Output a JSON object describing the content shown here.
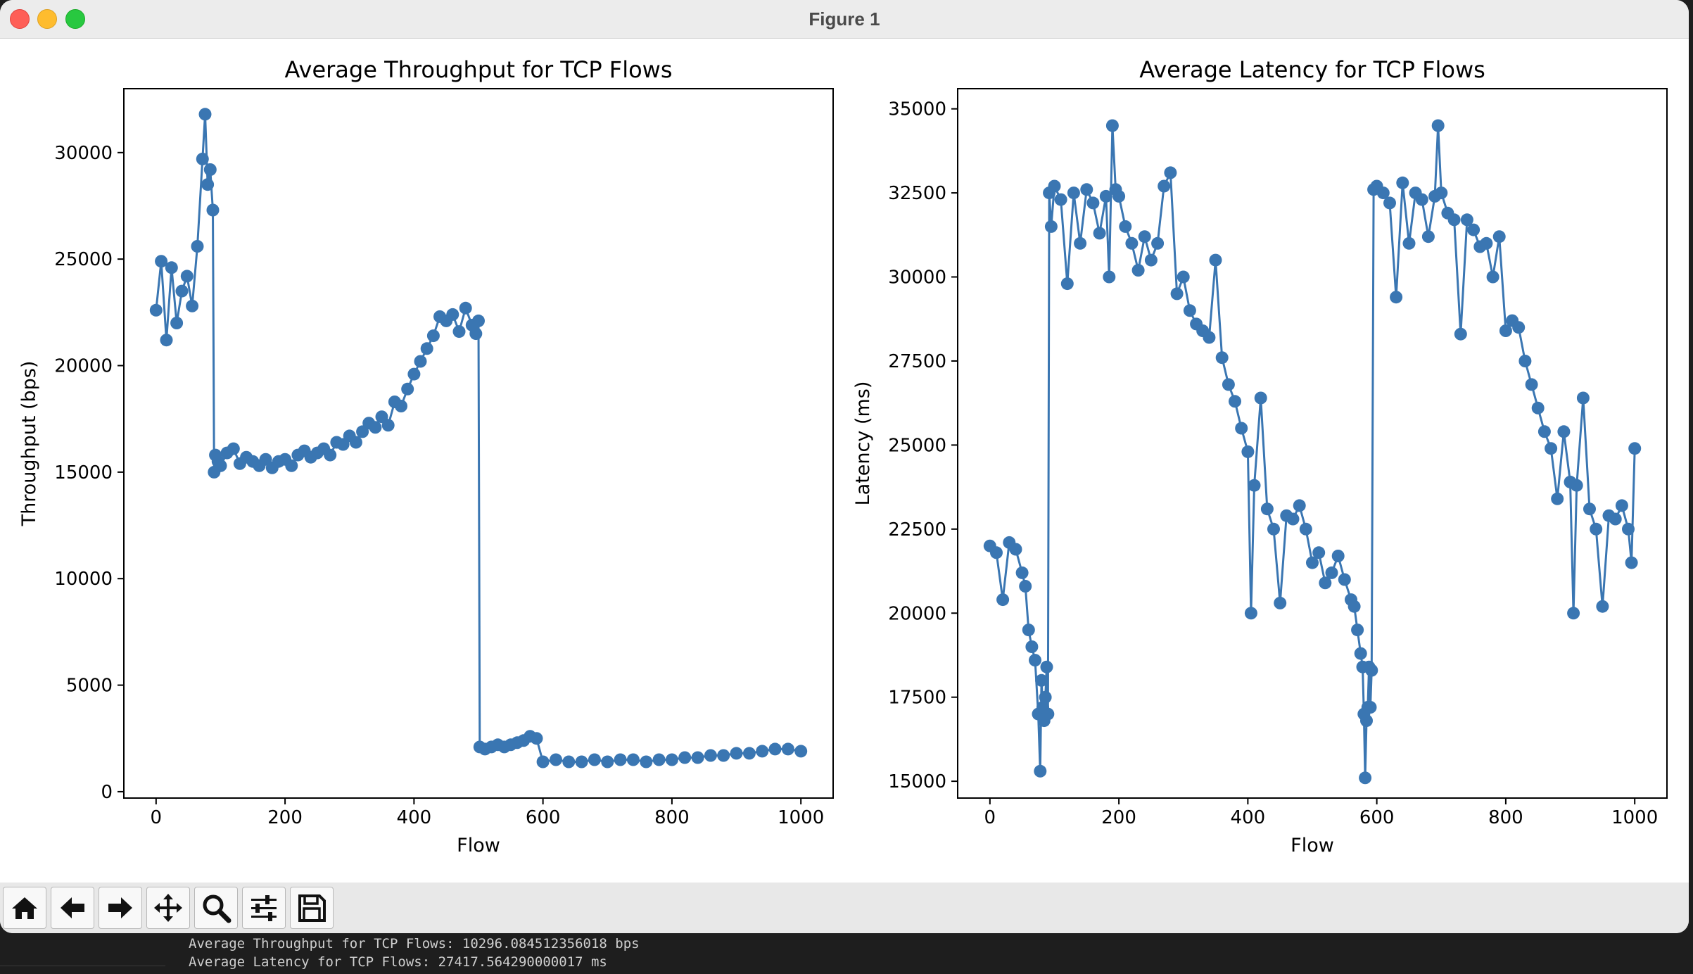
{
  "window": {
    "title": "Figure 1"
  },
  "toolbar": {
    "buttons": [
      {
        "name": "home-button",
        "icon": "home-icon"
      },
      {
        "name": "back-button",
        "icon": "arrow-left-icon"
      },
      {
        "name": "forward-button",
        "icon": "arrow-right-icon"
      },
      {
        "name": "pan-button",
        "icon": "move-icon"
      },
      {
        "name": "zoom-button",
        "icon": "magnifier-icon"
      },
      {
        "name": "configure-subplots-button",
        "icon": "sliders-icon"
      },
      {
        "name": "save-button",
        "icon": "floppy-disk-icon"
      }
    ]
  },
  "terminal": {
    "line1": "Average Throughput for TCP Flows: 10296.084512356018 bps",
    "line2": "Average Latency for TCP Flows: 27417.564290000017 ms"
  },
  "colors": {
    "series": "#3a76b2",
    "window_bg": "#ffffff",
    "titlebar": "#ececec"
  },
  "chart_data": [
    {
      "type": "line",
      "title": "Average Throughput for TCP Flows",
      "xlabel": "Flow",
      "ylabel": "Throughput (bps)",
      "xlim": [
        -50,
        1050
      ],
      "ylim": [
        -300,
        33000
      ],
      "xticks": [
        0,
        200,
        400,
        600,
        800,
        1000
      ],
      "yticks": [
        0,
        5000,
        10000,
        15000,
        20000,
        25000,
        30000
      ],
      "grid": false,
      "markers": "circle",
      "series": [
        {
          "x": [
            0,
            8,
            16,
            24,
            32,
            40,
            48,
            56,
            64,
            72,
            76,
            80,
            84,
            88,
            90,
            92,
            96,
            100,
            110,
            120,
            130,
            140,
            150,
            160,
            170,
            180,
            190,
            200,
            210,
            220,
            230,
            240,
            250,
            260,
            270,
            280,
            290,
            300,
            310,
            320,
            330,
            340,
            350,
            360,
            370,
            380,
            390,
            400,
            410,
            420,
            430,
            440,
            450,
            460,
            470,
            480,
            490,
            496,
            500,
            502,
            510,
            520,
            530,
            540,
            550,
            560,
            570,
            580,
            590,
            600,
            620,
            640,
            660,
            680,
            700,
            720,
            740,
            760,
            780,
            800,
            820,
            840,
            860,
            880,
            900,
            920,
            940,
            960,
            980,
            1000
          ],
          "y": [
            22600,
            24900,
            21200,
            24600,
            22000,
            23500,
            24200,
            22800,
            25600,
            29700,
            31800,
            28500,
            29200,
            27300,
            15000,
            15800,
            15500,
            15300,
            15900,
            16100,
            15400,
            15700,
            15500,
            15300,
            15600,
            15200,
            15500,
            15600,
            15300,
            15800,
            16000,
            15700,
            15900,
            16100,
            15800,
            16400,
            16300,
            16700,
            16400,
            16900,
            17300,
            17100,
            17600,
            17200,
            18300,
            18100,
            18900,
            19600,
            20200,
            20800,
            21400,
            22300,
            22100,
            22400,
            21600,
            22700,
            21900,
            21500,
            22100,
            2100,
            2000,
            2100,
            2200,
            2100,
            2200,
            2300,
            2400,
            2600,
            2500,
            1400,
            1500,
            1400,
            1400,
            1500,
            1400,
            1500,
            1500,
            1400,
            1500,
            1500,
            1600,
            1600,
            1700,
            1700,
            1800,
            1800,
            1900,
            2000,
            2000,
            1900
          ]
        }
      ]
    },
    {
      "type": "line",
      "title": "Average Latency for TCP Flows",
      "xlabel": "Flow",
      "ylabel": "Latency (ms)",
      "xlim": [
        -50,
        1050
      ],
      "ylim": [
        14500,
        35600
      ],
      "xticks": [
        0,
        200,
        400,
        600,
        800,
        1000
      ],
      "yticks": [
        15000,
        17500,
        20000,
        22500,
        25000,
        27500,
        30000,
        32500,
        35000
      ],
      "grid": false,
      "markers": "circle",
      "series": [
        {
          "x": [
            0,
            10,
            20,
            30,
            40,
            50,
            55,
            60,
            65,
            70,
            75,
            78,
            80,
            82,
            84,
            86,
            88,
            90,
            92,
            95,
            100,
            110,
            120,
            130,
            140,
            150,
            160,
            170,
            180,
            185,
            190,
            195,
            200,
            210,
            220,
            230,
            240,
            250,
            260,
            270,
            280,
            290,
            300,
            310,
            320,
            330,
            340,
            350,
            360,
            370,
            380,
            390,
            400,
            405,
            410,
            420,
            430,
            440,
            450,
            460,
            470,
            480,
            490,
            500,
            510,
            520,
            530,
            540,
            550,
            560,
            565,
            570,
            575,
            578,
            580,
            582,
            584,
            586,
            588,
            590,
            592,
            595,
            600,
            610,
            620,
            630,
            640,
            650,
            660,
            670,
            680,
            690,
            695,
            700,
            710,
            720,
            730,
            740,
            750,
            760,
            770,
            780,
            790,
            800,
            810,
            820,
            830,
            840,
            850,
            860,
            870,
            880,
            890,
            900,
            905,
            910,
            920,
            930,
            940,
            950,
            960,
            970,
            980,
            990,
            995,
            1000
          ],
          "y": [
            22000,
            21800,
            20400,
            22100,
            21900,
            21200,
            20800,
            19500,
            19000,
            18600,
            17000,
            15300,
            18000,
            17200,
            16800,
            17500,
            18400,
            17000,
            32500,
            31500,
            32700,
            32300,
            29800,
            32500,
            31000,
            32600,
            32200,
            31300,
            32400,
            30000,
            34500,
            32600,
            32400,
            31500,
            31000,
            30200,
            31200,
            30500,
            31000,
            32700,
            33100,
            29500,
            30000,
            29000,
            28600,
            28400,
            28200,
            30500,
            27600,
            26800,
            26300,
            25500,
            24800,
            20000,
            23800,
            26400,
            23100,
            22500,
            20300,
            22900,
            22800,
            23200,
            22500,
            21500,
            21800,
            20900,
            21200,
            21700,
            21000,
            20400,
            20200,
            19500,
            18800,
            18400,
            17000,
            15100,
            16800,
            17200,
            18400,
            17200,
            18300,
            32600,
            32700,
            32500,
            32200,
            29400,
            32800,
            31000,
            32500,
            32300,
            31200,
            32400,
            34500,
            32500,
            31900,
            31700,
            28300,
            31700,
            31400,
            30900,
            31000,
            30000,
            31200,
            28400,
            28700,
            28500,
            27500,
            26800,
            26100,
            25400,
            24900,
            23400,
            25400,
            23900,
            20000,
            23800,
            26400,
            23100,
            22500,
            20200,
            22900,
            22800,
            23200,
            22500,
            21500,
            24900
          ]
        }
      ]
    }
  ]
}
